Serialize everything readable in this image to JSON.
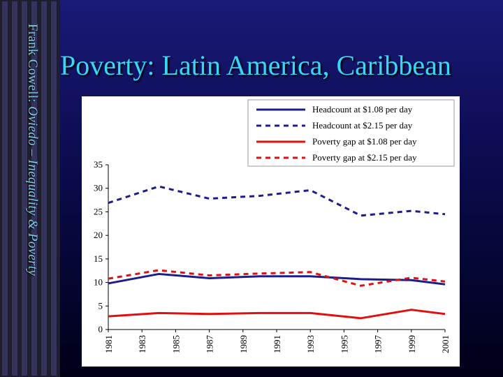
{
  "slide": {
    "sidebar": {
      "author": "Frank Cowell:",
      "subtitle": "Oviedo – Inequality & Poverty"
    },
    "title": "Poverty: Latin America, Caribbean"
  },
  "colors": {
    "headcount": "#1c1c8c",
    "gap": "#e01010"
  },
  "chart_data": {
    "type": "line",
    "title": "",
    "xlabel": "",
    "ylabel": "",
    "ylim": [
      0,
      35
    ],
    "yticks": [
      0,
      5,
      10,
      15,
      20,
      25,
      30,
      35
    ],
    "xticks": [
      "1981",
      "1983",
      "1985",
      "1987",
      "1989",
      "1991",
      "1993",
      "1995",
      "1997",
      "1999",
      "2001"
    ],
    "xlim": [
      1981,
      2001
    ],
    "legend_placement": "top-right",
    "grid": false,
    "series": [
      {
        "name": "Headcount at $1.08 per day",
        "style": "solid",
        "color": "#1c1c8c",
        "x": [
          1981,
          1984,
          1987,
          1990,
          1993,
          1996,
          1999,
          2001
        ],
        "values": [
          9.8,
          11.8,
          10.9,
          11.3,
          11.3,
          10.7,
          10.5,
          9.6
        ]
      },
      {
        "name": "Headcount at $2.15 per day",
        "style": "dashed",
        "color": "#1c1c8c",
        "x": [
          1981,
          1984,
          1987,
          1990,
          1993,
          1996,
          1999,
          2001
        ],
        "values": [
          26.9,
          30.4,
          27.8,
          28.4,
          29.6,
          24.2,
          25.2,
          24.5
        ]
      },
      {
        "name": "Poverty gap at $1.08 per day",
        "style": "solid",
        "color": "#e01010",
        "x": [
          1981,
          1984,
          1987,
          1990,
          1993,
          1996,
          1999,
          2001
        ],
        "values": [
          2.8,
          3.5,
          3.3,
          3.5,
          3.5,
          2.4,
          4.2,
          3.3
        ]
      },
      {
        "name": "Poverty gap at $2.15 per day",
        "style": "dashed",
        "color": "#e01010",
        "x": [
          1981,
          1984,
          1987,
          1990,
          1993,
          1996,
          1999,
          2001
        ],
        "values": [
          10.8,
          12.6,
          11.5,
          11.9,
          12.2,
          9.3,
          11.0,
          10.2
        ]
      }
    ]
  }
}
